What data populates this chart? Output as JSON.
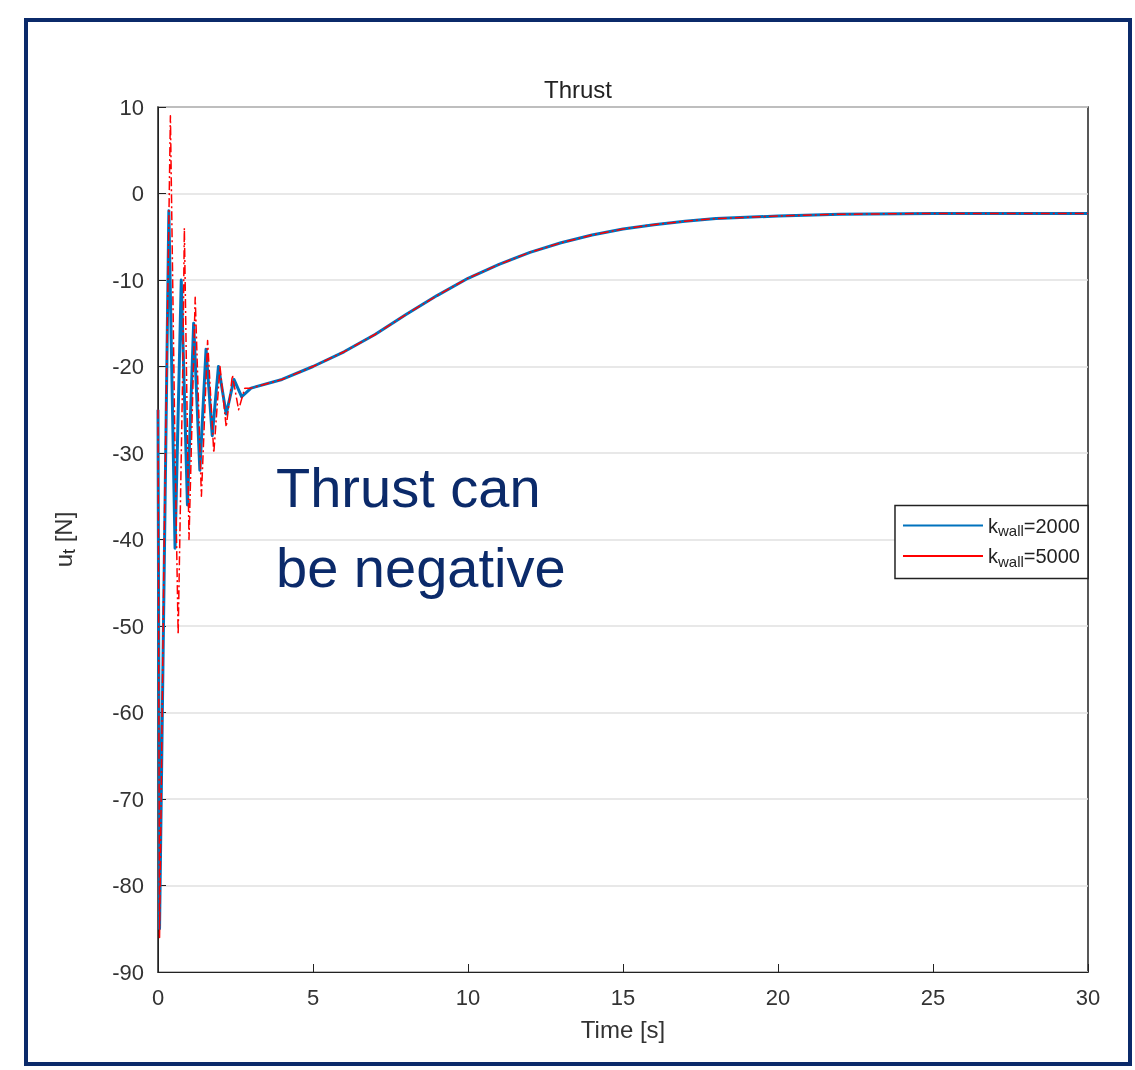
{
  "chart_data": {
    "type": "line",
    "title": "Thrust",
    "xlabel": "Time [s]",
    "ylabel": "u$_{t}$ [N]",
    "xlim": [
      0,
      30
    ],
    "xticks": [
      0,
      5,
      10,
      15,
      20,
      25,
      30
    ],
    "ylim": [
      -90,
      10
    ],
    "yticks": [
      -90,
      -80,
      -70,
      -60,
      -50,
      -40,
      -30,
      -20,
      -10,
      0,
      10
    ],
    "grid": "y",
    "legend": "right",
    "marker": "none",
    "annotations": [
      "Thrust can be negative"
    ],
    "series": [
      {
        "name": "k$_{wall}$=2000",
        "color": "#0072bd",
        "line_style": "solid",
        "x": [
          0,
          0.05,
          0.35,
          0.55,
          0.75,
          0.95,
          1.15,
          1.35,
          1.55,
          1.75,
          1.95,
          2.2,
          2.45,
          2.7,
          3,
          4,
          5,
          6,
          7,
          8,
          9,
          10,
          11,
          12,
          13,
          14,
          15,
          16,
          17,
          18,
          20,
          22,
          25,
          30
        ],
        "values": [
          -25,
          -85,
          -2,
          -41,
          -10,
          -36,
          -15,
          -32,
          -18,
          -28,
          -20,
          -25.5,
          -21.5,
          -23.5,
          -22.5,
          -21.5,
          -20,
          -18.3,
          -16.3,
          -14,
          -11.8,
          -9.8,
          -8.2,
          -6.8,
          -5.7,
          -4.8,
          -4.1,
          -3.6,
          -3.2,
          -2.9,
          -2.6,
          -2.4,
          -2.3,
          -2.3
        ]
      },
      {
        "name": "k$_{wall}$=5000",
        "color": "#ff0000",
        "line_style": "dashed",
        "x": [
          0,
          0.05,
          0.2,
          0.4,
          0.55,
          0.65,
          0.8,
          0.85,
          1.0,
          1.2,
          1.4,
          1.6,
          1.8,
          2.0,
          2.2,
          2.4,
          2.6,
          2.8,
          3,
          4,
          5,
          6,
          7,
          8,
          9,
          10,
          11,
          12,
          13,
          14,
          15,
          16,
          17,
          18,
          20,
          22,
          25,
          30
        ],
        "values": [
          -25,
          -86,
          -40,
          9,
          -30,
          -51,
          -20,
          -4,
          -40,
          -12,
          -35,
          -17,
          -30,
          -20,
          -27,
          -21,
          -25,
          -22.5,
          -22.5,
          -21.5,
          -20,
          -18.3,
          -16.3,
          -14,
          -11.8,
          -9.8,
          -8.2,
          -6.8,
          -5.7,
          -4.8,
          -4.1,
          -3.6,
          -3.2,
          -2.9,
          -2.6,
          -2.4,
          -2.3,
          -2.3
        ]
      }
    ]
  }
}
